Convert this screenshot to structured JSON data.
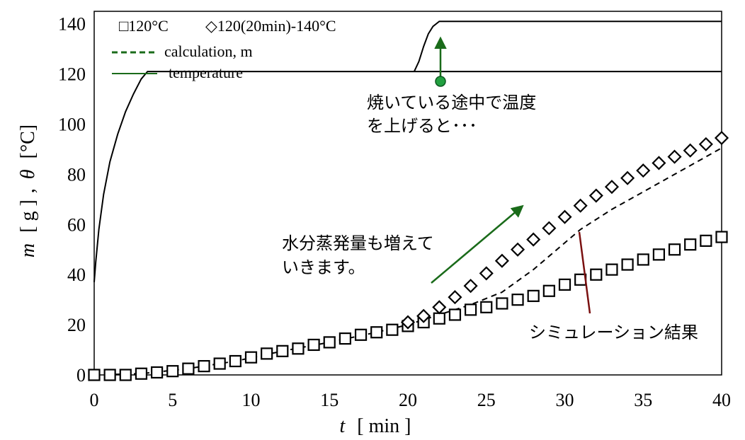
{
  "chart_data": {
    "type": "scatter",
    "xlabel": {
      "var": "t",
      "unit": "[ min ]"
    },
    "ylabel": {
      "var_m": "m",
      "unit_g": "[ g ]",
      "sep": ",",
      "var_theta": "θ",
      "unit_c": "[°C]"
    },
    "xlim": [
      0,
      40
    ],
    "ylim": [
      0,
      145
    ],
    "x_ticks": [
      0,
      5,
      10,
      15,
      20,
      25,
      30,
      35,
      40
    ],
    "y_ticks": [
      0,
      20,
      40,
      60,
      80,
      100,
      120,
      140
    ],
    "grid": false,
    "legend": {
      "placement": "top-left",
      "entries": {
        "s120": "□120°C",
        "s140": "◇120(20min)-140°C",
        "calc": "calculation, m",
        "temp": "temperature"
      }
    },
    "series": [
      {
        "key": "s120",
        "name": "□120°C",
        "marker": "square",
        "x": [
          0,
          1,
          2,
          3,
          4,
          5,
          6,
          7,
          8,
          9,
          10,
          11,
          12,
          13,
          14,
          15,
          16,
          17,
          18,
          19,
          20,
          21,
          22,
          23,
          24,
          25,
          26,
          27,
          28,
          29,
          30,
          31,
          32,
          33,
          34,
          35,
          36,
          37,
          38,
          39,
          40
        ],
        "y": [
          0,
          0,
          0,
          0.5,
          1,
          1.5,
          2.5,
          3.5,
          4.5,
          5.5,
          7,
          8.5,
          9.5,
          10.5,
          12,
          13,
          14.5,
          16,
          17,
          18,
          19.5,
          21,
          22.5,
          24,
          26,
          27,
          28.5,
          30,
          31.5,
          33.5,
          36,
          38,
          40,
          42,
          44,
          46,
          48,
          50,
          52,
          53.5,
          55
        ]
      },
      {
        "key": "s140",
        "name": "◇120(20min)-140°C",
        "marker": "diamond",
        "x": [
          20,
          21,
          22,
          23,
          24,
          25,
          26,
          27,
          28,
          29,
          30,
          31,
          32,
          33,
          34,
          35,
          36,
          37,
          38,
          39,
          40
        ],
        "y": [
          21,
          23.5,
          27,
          31,
          35.5,
          40.5,
          45.5,
          50,
          54,
          58.5,
          63,
          67.5,
          71.5,
          75,
          78.5,
          81.5,
          84.5,
          87,
          89.5,
          92,
          94.5
        ]
      },
      {
        "key": "calc",
        "name": "calculation, m",
        "style": "dashed",
        "x": [
          0,
          3,
          6,
          9,
          12,
          15,
          18,
          20,
          22,
          24,
          26,
          28,
          31,
          33,
          35,
          37,
          39,
          40
        ],
        "y": [
          0,
          0.5,
          2.5,
          5.5,
          9.5,
          13,
          17,
          20,
          24,
          28,
          33,
          42,
          58,
          66,
          73,
          80,
          87,
          90.5
        ]
      },
      {
        "key": "temp_a",
        "name": "temperature",
        "style": "solid",
        "x": [
          0,
          0.1,
          0.3,
          0.6,
          1,
          1.5,
          2,
          2.5,
          3,
          3.4,
          40
        ],
        "y": [
          37,
          45,
          58,
          72,
          85,
          96,
          105,
          112,
          118,
          121,
          121
        ]
      },
      {
        "key": "temp_b",
        "name": "temperature",
        "style": "solid",
        "x": [
          20.4,
          20.7,
          21,
          21.3,
          21.6,
          22,
          40
        ],
        "y": [
          121,
          125,
          131,
          136,
          139,
          141,
          141
        ]
      }
    ],
    "annotations": {
      "temp_rise_line1": "焼いている途中で温度",
      "temp_rise_line2": "を上げると･･･",
      "evap_line1": "水分蒸発量も増えて",
      "evap_line2": "いきます。",
      "sim": "シミュレーション結果"
    },
    "colors": {
      "annotation_green": "#1a6b1a",
      "annotation_red": "#7a1010",
      "dot_green": "#22a040"
    }
  }
}
